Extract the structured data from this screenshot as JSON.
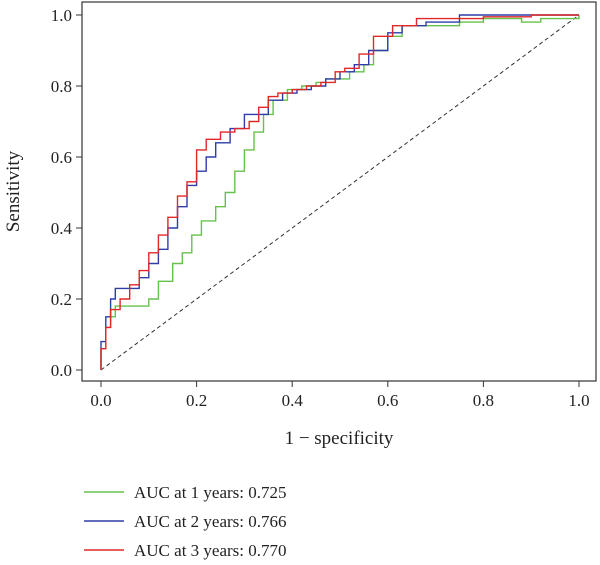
{
  "chart_data": {
    "type": "line",
    "title": "",
    "xlabel": "1 − specificity",
    "ylabel": "Sensitivity",
    "xlim": [
      0,
      1
    ],
    "ylim": [
      0,
      1
    ],
    "x_ticks": [
      "0.0",
      "0.2",
      "0.4",
      "0.6",
      "0.8",
      "1.0"
    ],
    "y_ticks": [
      "0.0",
      "0.2",
      "0.4",
      "0.6",
      "0.8",
      "1.0"
    ],
    "grid": false,
    "legend_position": "bottom-left",
    "reference_line": {
      "style": "dashed",
      "from": [
        0,
        0
      ],
      "to": [
        1,
        1
      ]
    },
    "series": [
      {
        "name": "AUC at 1 years: 0.725",
        "color": "#66c24a",
        "points": [
          [
            0,
            0
          ],
          [
            0,
            0.06
          ],
          [
            0.01,
            0.12
          ],
          [
            0.02,
            0.15
          ],
          [
            0.03,
            0.18
          ],
          [
            0.07,
            0.18
          ],
          [
            0.1,
            0.2
          ],
          [
            0.12,
            0.25
          ],
          [
            0.15,
            0.3
          ],
          [
            0.17,
            0.33
          ],
          [
            0.19,
            0.38
          ],
          [
            0.21,
            0.42
          ],
          [
            0.24,
            0.46
          ],
          [
            0.26,
            0.5
          ],
          [
            0.28,
            0.56
          ],
          [
            0.3,
            0.62
          ],
          [
            0.32,
            0.67
          ],
          [
            0.34,
            0.72
          ],
          [
            0.36,
            0.76
          ],
          [
            0.39,
            0.79
          ],
          [
            0.42,
            0.8
          ],
          [
            0.45,
            0.81
          ],
          [
            0.47,
            0.82
          ],
          [
            0.5,
            0.82
          ],
          [
            0.52,
            0.84
          ],
          [
            0.55,
            0.86
          ],
          [
            0.57,
            0.9
          ],
          [
            0.6,
            0.94
          ],
          [
            0.63,
            0.97
          ],
          [
            0.68,
            0.97
          ],
          [
            0.75,
            0.98
          ],
          [
            0.8,
            0.99
          ],
          [
            0.83,
            0.99
          ],
          [
            0.88,
            0.98
          ],
          [
            0.92,
            0.99
          ],
          [
            1,
            1
          ]
        ]
      },
      {
        "name": "AUC at 2 years: 0.766",
        "color": "#2e3da8",
        "points": [
          [
            0,
            0
          ],
          [
            0,
            0.08
          ],
          [
            0.01,
            0.15
          ],
          [
            0.02,
            0.2
          ],
          [
            0.03,
            0.23
          ],
          [
            0.06,
            0.23
          ],
          [
            0.08,
            0.26
          ],
          [
            0.1,
            0.3
          ],
          [
            0.12,
            0.34
          ],
          [
            0.14,
            0.4
          ],
          [
            0.16,
            0.46
          ],
          [
            0.18,
            0.52
          ],
          [
            0.2,
            0.56
          ],
          [
            0.22,
            0.6
          ],
          [
            0.24,
            0.64
          ],
          [
            0.27,
            0.68
          ],
          [
            0.3,
            0.72
          ],
          [
            0.32,
            0.72
          ],
          [
            0.35,
            0.76
          ],
          [
            0.38,
            0.78
          ],
          [
            0.41,
            0.79
          ],
          [
            0.44,
            0.8
          ],
          [
            0.47,
            0.82
          ],
          [
            0.5,
            0.84
          ],
          [
            0.53,
            0.86
          ],
          [
            0.56,
            0.9
          ],
          [
            0.6,
            0.95
          ],
          [
            0.63,
            0.97
          ],
          [
            0.68,
            0.98
          ],
          [
            0.75,
            1
          ],
          [
            0.82,
            1
          ],
          [
            0.88,
            1
          ],
          [
            1,
            1
          ]
        ]
      },
      {
        "name": "AUC at 3 years: 0.770",
        "color": "#e02828",
        "points": [
          [
            0,
            0
          ],
          [
            0,
            0.06
          ],
          [
            0.01,
            0.12
          ],
          [
            0.02,
            0.17
          ],
          [
            0.04,
            0.2
          ],
          [
            0.06,
            0.24
          ],
          [
            0.08,
            0.28
          ],
          [
            0.1,
            0.33
          ],
          [
            0.12,
            0.38
          ],
          [
            0.14,
            0.43
          ],
          [
            0.16,
            0.49
          ],
          [
            0.18,
            0.53
          ],
          [
            0.2,
            0.62
          ],
          [
            0.22,
            0.65
          ],
          [
            0.25,
            0.67
          ],
          [
            0.28,
            0.68
          ],
          [
            0.31,
            0.7
          ],
          [
            0.33,
            0.74
          ],
          [
            0.35,
            0.77
          ],
          [
            0.37,
            0.78
          ],
          [
            0.4,
            0.79
          ],
          [
            0.43,
            0.8
          ],
          [
            0.46,
            0.81
          ],
          [
            0.49,
            0.84
          ],
          [
            0.51,
            0.85
          ],
          [
            0.54,
            0.89
          ],
          [
            0.57,
            0.94
          ],
          [
            0.61,
            0.97
          ],
          [
            0.66,
            0.99
          ],
          [
            0.72,
            0.99
          ],
          [
            0.8,
            0.995
          ],
          [
            0.9,
            1
          ],
          [
            1,
            1
          ]
        ]
      }
    ]
  }
}
